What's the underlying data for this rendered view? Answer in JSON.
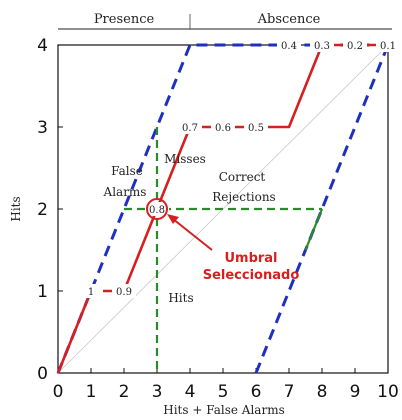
{
  "chart_data": {
    "type": "line",
    "xlabel": "Hits + False Alarms",
    "ylabel": "Hits",
    "xlim": [
      0,
      10
    ],
    "ylim": [
      0,
      4
    ],
    "x_ticks": [
      "0",
      "1",
      "2",
      "3",
      "4",
      "5",
      "6",
      "7",
      "8",
      "9",
      "10"
    ],
    "y_ticks": [
      "0",
      "1",
      "2",
      "3",
      "4"
    ],
    "header": {
      "left": "Presence",
      "right": "Abscence",
      "divider_x": 4
    },
    "series": [
      {
        "color": "#d62020",
        "style": "solid",
        "points": [
          [
            0,
            0
          ],
          [
            1,
            1
          ],
          [
            2,
            1
          ],
          [
            3,
            2
          ],
          [
            4,
            3
          ],
          [
            7,
            3
          ],
          [
            8,
            4
          ],
          [
            10,
            4
          ]
        ]
      },
      {
        "color": "#1f2fc0",
        "style": "dashed",
        "points": [
          [
            0,
            0
          ],
          [
            4,
            4
          ],
          [
            10,
            4
          ]
        ]
      },
      {
        "color": "#1f2fc0",
        "style": "dashed",
        "points": [
          [
            6,
            0
          ],
          [
            10,
            4
          ]
        ]
      },
      {
        "color": "#c8c8c8",
        "style": "thin",
        "points": [
          [
            0,
            0
          ],
          [
            10,
            4
          ]
        ]
      }
    ],
    "point_labels": [
      {
        "text": "1",
        "x": 1,
        "y": 1
      },
      {
        "text": "0.9",
        "x": 2,
        "y": 1
      },
      {
        "text": "0.8",
        "x": 3,
        "y": 2
      },
      {
        "text": "0.7",
        "x": 4,
        "y": 3
      },
      {
        "text": "0.6",
        "x": 5,
        "y": 3
      },
      {
        "text": "0.5",
        "x": 6,
        "y": 3
      },
      {
        "text": "0.4",
        "x": 7,
        "y": 4
      },
      {
        "text": "0.3",
        "x": 8,
        "y": 4
      },
      {
        "text": "0.2",
        "x": 9,
        "y": 4
      },
      {
        "text": "0.1",
        "x": 10,
        "y": 4
      }
    ],
    "selected_point": {
      "x": 3,
      "y": 2
    },
    "guides": {
      "color": "#2a8a2a",
      "h_to_x": 8,
      "v_to_y": 3
    },
    "annotations": {
      "false_alarms": [
        "False",
        "Alarms"
      ],
      "misses": "Misses",
      "correct_rejections": [
        "Correct",
        "Rejections"
      ],
      "hits": "Hits",
      "umbral": [
        "Umbral",
        "Seleccionado"
      ]
    }
  }
}
